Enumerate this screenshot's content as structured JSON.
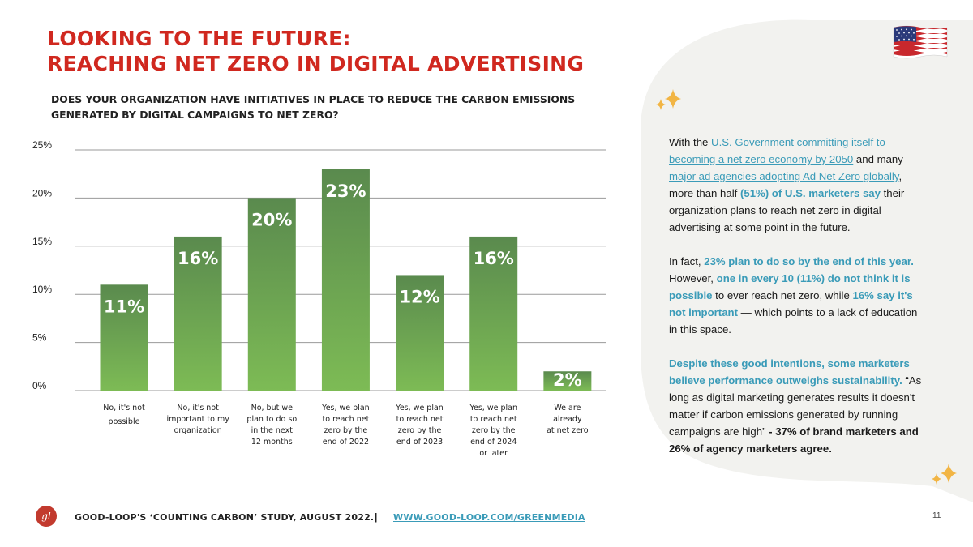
{
  "title": {
    "line1": "LOOKING TO THE FUTURE:",
    "line2": "REACHING NET ZERO IN DIGITAL ADVERTISING"
  },
  "question": "DOES YOUR ORGANIZATION HAVE INITIATIVES IN PLACE TO REDUCE THE CARBON EMISSIONS GENERATED BY DIGITAL CAMPAIGNS TO NET ZERO?",
  "chart_data": {
    "type": "bar",
    "title": "",
    "xlabel": "",
    "ylabel": "",
    "ylim": [
      0,
      25
    ],
    "yticks": [
      "0%",
      "5%",
      "10%",
      "15%",
      "20%",
      "25%"
    ],
    "ytick_values": [
      0,
      5,
      10,
      15,
      20,
      25
    ],
    "grid": true,
    "categories": [
      [
        "No, it's not",
        "possible"
      ],
      [
        "No, it's not",
        "important to my",
        "organization"
      ],
      [
        "No, but we",
        "plan to do so",
        "in the next",
        "12 months"
      ],
      [
        "Yes, we plan",
        "to reach net",
        "zero by the",
        "end of 2022"
      ],
      [
        "Yes, we plan",
        "to reach net",
        "zero by the",
        "end of 2023"
      ],
      [
        "Yes, we plan",
        "to reach net",
        "zero by the",
        "end of 2024",
        "or later"
      ],
      [
        "We are",
        "already",
        "at net zero"
      ]
    ],
    "values": [
      11,
      16,
      20,
      23,
      12,
      16,
      2
    ],
    "data_labels": [
      "11%",
      "16%",
      "20%",
      "23%",
      "12%",
      "16%",
      "2%"
    ],
    "colors": {
      "bar_top": "#5a8a4e",
      "bar_bottom": "#7dbb55",
      "grid": "#9a9a9a",
      "label": "#ffffff"
    }
  },
  "body": {
    "p1": {
      "t1": "With the ",
      "link1": "U.S. Government committing itself to becoming a net zero economy by 2050",
      "t2": " and many ",
      "link2": "major ad agencies adopting Ad Net Zero globally",
      "t3": ", more than half ",
      "hl1": "(51%) of U.S. marketers say",
      "t4": " their organization plans to reach net zero in digital advertising at some point in the future."
    },
    "p2": {
      "t1": "In fact, ",
      "hl1": "23% plan to do so by the end of this year.",
      "t2": " However, ",
      "hl2": "one in every 10 (11%) do not think it is possible",
      "t3": " to ever reach net zero, while ",
      "hl3": "16% say it's not important",
      "t4": " — which points to a lack of education in this space."
    },
    "p3": {
      "hl1": "Despite these good intentions, some marketers believe performance outweighs sustainability.",
      "t1": " “As long as digital marketing generates results it doesn't matter if carbon emissions generated by running campaigns are high”",
      "strong1": " - 37% of brand marketers and 26% of agency marketers agree."
    }
  },
  "footer": {
    "logo_text": "gl",
    "study": "GOOD-LOOP'S ‘COUNTING CARBON’ STUDY, AUGUST 2022.",
    "separator": "|",
    "url": "WWW.GOOD-LOOP.COM/GREENMEDIA",
    "page_number": "11"
  },
  "colors": {
    "accent_red": "#d0281f",
    "accent_teal": "#3a9bb8",
    "sparkle": "#f2b544",
    "blob": "#f2f2ef"
  },
  "icons": {
    "flag": "us-flag-icon",
    "sparkle": "sparkle-icon"
  }
}
